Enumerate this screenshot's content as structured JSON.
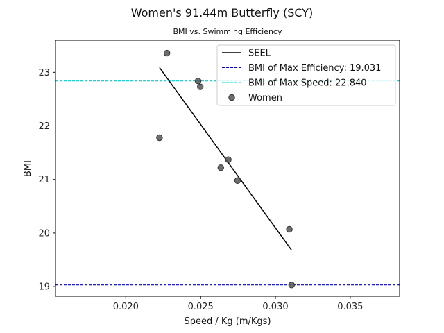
{
  "chart_data": {
    "type": "scatter",
    "title": "Women's 91.44m Butterfly (SCY)",
    "subtitle": "BMI vs. Swimming Efficiency",
    "xlabel": "Speed / Kg (m/Kgs)",
    "ylabel": "BMI",
    "xlim": [
      0.0153,
      0.0383
    ],
    "ylim": [
      18.82,
      23.6
    ],
    "x_ticks": [
      "0.020",
      "0.025",
      "0.030",
      "0.035"
    ],
    "y_ticks": [
      "19",
      "20",
      "21",
      "22",
      "23"
    ],
    "legend_position": "top-right",
    "grid": false,
    "series": [
      {
        "name": "Women",
        "kind": "scatter",
        "color": "#555555",
        "points": [
          {
            "x": 0.02275,
            "y": 23.36
          },
          {
            "x": 0.02225,
            "y": 21.78
          },
          {
            "x": 0.02483,
            "y": 22.84
          },
          {
            "x": 0.02498,
            "y": 22.73
          },
          {
            "x": 0.02635,
            "y": 21.22
          },
          {
            "x": 0.02685,
            "y": 21.37
          },
          {
            "x": 0.02747,
            "y": 20.98
          },
          {
            "x": 0.03093,
            "y": 20.07
          },
          {
            "x": 0.03108,
            "y": 19.03
          }
        ]
      },
      {
        "name": "SEEL",
        "kind": "line",
        "color": "#000000",
        "points": [
          {
            "x": 0.02225,
            "y": 23.09
          },
          {
            "x": 0.03108,
            "y": 19.68
          }
        ]
      }
    ],
    "reference_lines": [
      {
        "name": "BMI of Max Efficiency: 19.031",
        "y": 19.031,
        "color": "#0000cc",
        "style": "dashed"
      },
      {
        "name": "BMI of Max Speed: 22.840",
        "y": 22.84,
        "color": "#00cccc",
        "style": "dashed"
      }
    ],
    "legend": [
      "SEEL",
      "BMI of Max Efficiency: 19.031",
      "BMI of Max Speed: 22.840",
      "Women"
    ]
  }
}
